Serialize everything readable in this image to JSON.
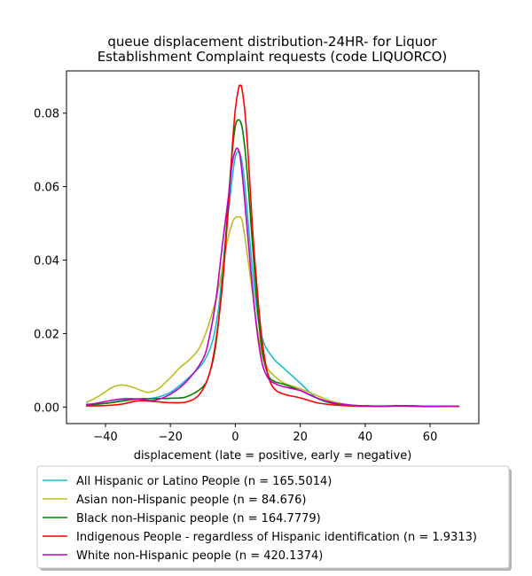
{
  "chart_data": {
    "type": "line",
    "title_lines": [
      "queue displacement distribution-24HR-  for Liquor",
      "Establishment Complaint  requests (code LIQUORCO)"
    ],
    "xlabel": "displacement (late = positive, early = negative)",
    "ylabel": "",
    "xlim": [
      -52,
      75
    ],
    "ylim": [
      -0.0045,
      0.0915
    ],
    "xticks": [
      -40,
      -20,
      0,
      20,
      40,
      60
    ],
    "xtick_labels": [
      "−40",
      "−20",
      "0",
      "20",
      "40",
      "60"
    ],
    "yticks": [
      0.0,
      0.02,
      0.04,
      0.06,
      0.08
    ],
    "ytick_labels": [
      "0.00",
      "0.02",
      "0.04",
      "0.06",
      "0.08"
    ],
    "grid": false,
    "legend_position": "below-plot",
    "series": [
      {
        "name": "All Hispanic or Latino People (n = 165.5014)",
        "color": "#17becf",
        "x": [
          -46,
          -40,
          -35,
          -30,
          -25,
          -20,
          -15,
          -10,
          -7,
          -5,
          -3,
          -1,
          0,
          1,
          2,
          3,
          5,
          7,
          9,
          12,
          15,
          20,
          25,
          30,
          35,
          40,
          45,
          50,
          55,
          60,
          65,
          69
        ],
        "y": [
          0.0008,
          0.001,
          0.0018,
          0.0022,
          0.0025,
          0.004,
          0.0075,
          0.012,
          0.018,
          0.028,
          0.046,
          0.062,
          0.068,
          0.0695,
          0.067,
          0.06,
          0.04,
          0.024,
          0.017,
          0.013,
          0.0105,
          0.0065,
          0.0025,
          0.001,
          0.0005,
          0.0003,
          0.0003,
          0.0004,
          0.0003,
          0.0002,
          0.0002,
          0.0002
        ]
      },
      {
        "name": "Asian non-Hispanic people (n = 84.676)",
        "color": "#bcbd22",
        "x": [
          -46,
          -42,
          -38,
          -35,
          -32,
          -29,
          -27,
          -24,
          -20,
          -17,
          -14,
          -11,
          -8,
          -5,
          -3,
          -1,
          0,
          1,
          2,
          3,
          5,
          7,
          9,
          12,
          15,
          20,
          25,
          30,
          35,
          40,
          45,
          50,
          55,
          60,
          65,
          69
        ],
        "y": [
          0.0012,
          0.003,
          0.0053,
          0.006,
          0.0055,
          0.0045,
          0.004,
          0.0048,
          0.008,
          0.0108,
          0.013,
          0.0162,
          0.023,
          0.033,
          0.043,
          0.05,
          0.0515,
          0.0518,
          0.051,
          0.046,
          0.033,
          0.02,
          0.012,
          0.0085,
          0.0065,
          0.005,
          0.0032,
          0.0015,
          0.0006,
          0.0003,
          0.0002,
          0.0003,
          0.0002,
          0.0001,
          0.0002,
          0.0002
        ]
      },
      {
        "name": "Black non-Hispanic people (n = 164.7779)",
        "color": "#008000",
        "x": [
          -46,
          -40,
          -35,
          -30,
          -25,
          -20,
          -15,
          -10,
          -8,
          -6,
          -4,
          -2,
          -1,
          0,
          1,
          2,
          3,
          4,
          6,
          8,
          10,
          12,
          15,
          20,
          25,
          30,
          35,
          40,
          45,
          50,
          55,
          60,
          65,
          69
        ],
        "y": [
          0.0005,
          0.001,
          0.0016,
          0.0022,
          0.0023,
          0.0024,
          0.0028,
          0.0055,
          0.009,
          0.017,
          0.034,
          0.058,
          0.069,
          0.0765,
          0.0782,
          0.0765,
          0.07,
          0.06,
          0.036,
          0.017,
          0.009,
          0.007,
          0.0062,
          0.0045,
          0.0025,
          0.001,
          0.0005,
          0.0003,
          0.0002,
          0.0003,
          0.0003,
          0.0002,
          0.0002,
          0.0002
        ]
      },
      {
        "name": "Indigenous People - regardless of Hispanic identification (n = 1.9313)",
        "color": "#ff0000",
        "x": [
          -46,
          -40,
          -35,
          -30,
          -25,
          -20,
          -15,
          -11,
          -8,
          -6,
          -4,
          -2,
          -1,
          0,
          1,
          1.5,
          2,
          3,
          4,
          5,
          6,
          8,
          10,
          12,
          15,
          20,
          25,
          30,
          35,
          40,
          45,
          50,
          55,
          60,
          65,
          69
        ],
        "y": [
          0.0003,
          0.0004,
          0.0008,
          0.0017,
          0.0015,
          0.0012,
          0.0014,
          0.0035,
          0.009,
          0.018,
          0.033,
          0.056,
          0.07,
          0.081,
          0.0868,
          0.0875,
          0.0868,
          0.08,
          0.068,
          0.053,
          0.04,
          0.02,
          0.009,
          0.005,
          0.0035,
          0.0025,
          0.0012,
          0.0006,
          0.0003,
          0.0002,
          0.0002,
          0.0003,
          0.0002,
          0.0002,
          0.0002,
          0.0002
        ]
      },
      {
        "name": "White non-Hispanic people (n = 420.1374)",
        "color": "#bf00bf",
        "x": [
          -46,
          -40,
          -35,
          -30,
          -25,
          -20,
          -15,
          -10,
          -8,
          -6,
          -4,
          -2,
          -1,
          0,
          0.8,
          1.5,
          2.5,
          4,
          6,
          8,
          10,
          12,
          15,
          20,
          25,
          30,
          35,
          40,
          45,
          50,
          55,
          60,
          65,
          69
        ],
        "y": [
          0.0005,
          0.0015,
          0.0022,
          0.0022,
          0.0018,
          0.0035,
          0.007,
          0.013,
          0.019,
          0.029,
          0.044,
          0.058,
          0.066,
          0.0698,
          0.0703,
          0.068,
          0.06,
          0.045,
          0.026,
          0.013,
          0.008,
          0.0065,
          0.0055,
          0.0045,
          0.0025,
          0.0012,
          0.0006,
          0.0003,
          0.0002,
          0.0003,
          0.0003,
          0.0002,
          0.0002,
          0.0002
        ]
      }
    ]
  }
}
